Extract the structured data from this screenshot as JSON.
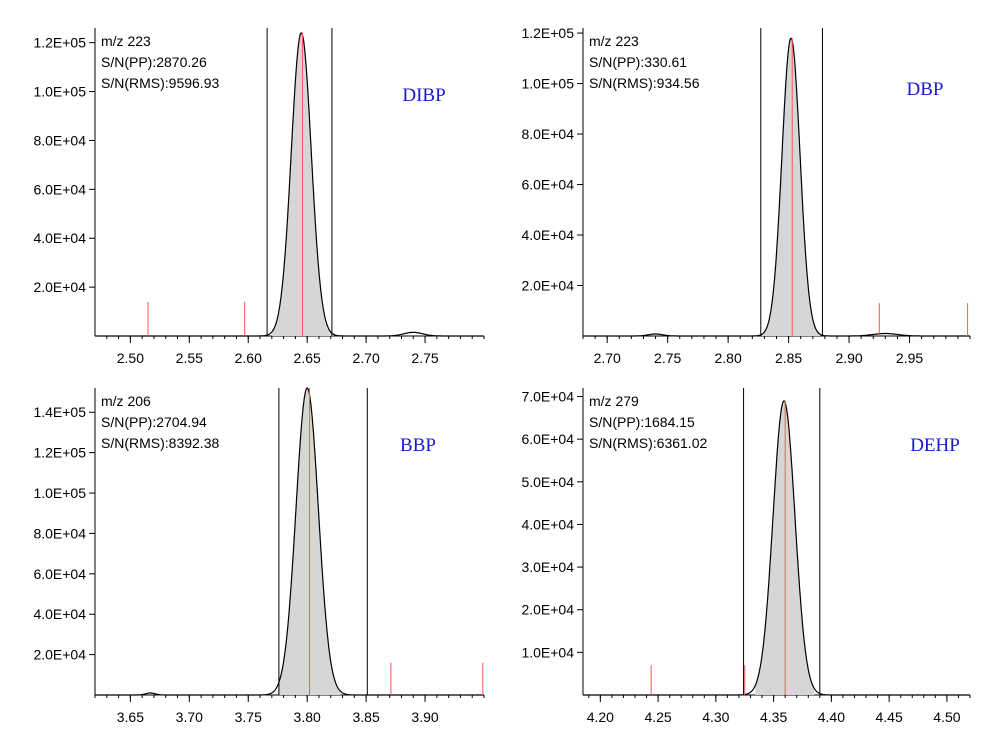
{
  "chart_data": [
    {
      "type": "area",
      "compound": "DIBP",
      "annotations": [
        "m/z 223",
        "S/N(PP):2870.26",
        "S/N(RMS):9596.93"
      ],
      "x_ticks": [
        "2.50",
        "2.55",
        "2.60",
        "2.65",
        "2.70",
        "2.75"
      ],
      "x_tick_values": [
        2.5,
        2.55,
        2.6,
        2.65,
        2.7,
        2.75
      ],
      "xlim": [
        2.47,
        2.8
      ],
      "y_ticks": [
        "2.0E+04",
        "4.0E+04",
        "6.0E+04",
        "8.0E+04",
        "1.0E+05",
        "1.2E+05"
      ],
      "y_tick_values": [
        20000,
        40000,
        60000,
        80000,
        100000,
        120000
      ],
      "ylim": [
        0,
        126000
      ],
      "peak": {
        "apex": 2.645,
        "height": 124000,
        "sigma": 0.0085,
        "left": 2.62,
        "right": 2.672
      },
      "minor_peaks": [
        {
          "center": 2.74,
          "height": 1500,
          "sigma": 0.008
        }
      ],
      "integration_bounds": [
        2.616,
        2.671
      ],
      "marker_lines": [
        {
          "x": 2.646,
          "height": 124000
        },
        {
          "x": 2.515,
          "height": 14000
        },
        {
          "x": 2.597,
          "height": 14000
        }
      ]
    },
    {
      "type": "area",
      "compound": "DBP",
      "annotations": [
        "m/z 223",
        "S/N(PP):330.61",
        "S/N(RMS):934.56"
      ],
      "x_ticks": [
        "2.70",
        "2.75",
        "2.80",
        "2.85",
        "2.90",
        "2.95"
      ],
      "x_tick_values": [
        2.7,
        2.75,
        2.8,
        2.85,
        2.9,
        2.95
      ],
      "xlim": [
        2.68,
        3.0
      ],
      "y_ticks": [
        "2.0E+04",
        "4.0E+04",
        "6.0E+04",
        "8.0E+04",
        "1.0E+05",
        "1.2E+05"
      ],
      "y_tick_values": [
        20000,
        40000,
        60000,
        80000,
        100000,
        120000
      ],
      "ylim": [
        0,
        122000
      ],
      "peak": {
        "apex": 2.852,
        "height": 118000,
        "sigma": 0.0075,
        "left": 2.828,
        "right": 2.876
      },
      "minor_peaks": [
        {
          "center": 2.74,
          "height": 800,
          "sigma": 0.006
        },
        {
          "center": 2.93,
          "height": 1000,
          "sigma": 0.01
        }
      ],
      "integration_bounds": [
        2.827,
        2.878
      ],
      "marker_lines": [
        {
          "x": 2.853,
          "height": 118000
        },
        {
          "x": 2.925,
          "height": 13000
        },
        {
          "x": 2.998,
          "height": 13000
        }
      ]
    },
    {
      "type": "area",
      "compound": "BBP",
      "annotations": [
        "m/z 206",
        "S/N(PP):2704.94",
        "S/N(RMS):8392.38"
      ],
      "x_ticks": [
        "3.65",
        "3.70",
        "3.75",
        "3.80",
        "3.85",
        "3.90"
      ],
      "x_tick_values": [
        3.65,
        3.7,
        3.75,
        3.8,
        3.85,
        3.9
      ],
      "xlim": [
        3.62,
        3.95
      ],
      "y_ticks": [
        "2.0E+04",
        "4.0E+04",
        "6.0E+04",
        "8.0E+04",
        "1.0E+05",
        "1.2E+05",
        "1.4E+05"
      ],
      "y_tick_values": [
        20000,
        40000,
        60000,
        80000,
        100000,
        120000,
        140000
      ],
      "ylim": [
        0,
        152000
      ],
      "peak": {
        "apex": 3.8,
        "height": 152000,
        "sigma": 0.0095,
        "left": 3.776,
        "right": 3.828
      },
      "minor_peaks": [
        {
          "center": 3.667,
          "height": 1000,
          "sigma": 0.004
        }
      ],
      "integration_bounds": [
        3.776,
        3.851
      ],
      "marker_lines": [
        {
          "x": 3.802,
          "height": 152000
        },
        {
          "x": 3.871,
          "height": 16000
        },
        {
          "x": 3.949,
          "height": 16000
        }
      ]
    },
    {
      "type": "area",
      "compound": "DEHP",
      "annotations": [
        "m/z 279",
        "S/N(PP):1684.15",
        "S/N(RMS):6361.02"
      ],
      "x_ticks": [
        "4.20",
        "4.25",
        "4.30",
        "4.35",
        "4.40",
        "4.45",
        "4.50"
      ],
      "x_tick_values": [
        4.2,
        4.25,
        4.3,
        4.35,
        4.4,
        4.45,
        4.5
      ],
      "xlim": [
        4.185,
        4.52
      ],
      "y_ticks": [
        "1.0E+04",
        "2.0E+04",
        "3.0E+04",
        "4.0E+04",
        "5.0E+04",
        "6.0E+04",
        "7.0E+04"
      ],
      "y_tick_values": [
        10000,
        20000,
        30000,
        40000,
        50000,
        60000,
        70000
      ],
      "ylim": [
        0,
        72000
      ],
      "peak": {
        "apex": 4.359,
        "height": 69000,
        "sigma": 0.0095,
        "left": 4.334,
        "right": 4.385
      },
      "minor_peaks": [],
      "integration_bounds": [
        4.324,
        4.39
      ],
      "marker_lines": [
        {
          "x": 4.36,
          "height": 69000
        },
        {
          "x": 4.244,
          "height": 7000
        },
        {
          "x": 4.325,
          "height": 7000
        }
      ]
    }
  ]
}
